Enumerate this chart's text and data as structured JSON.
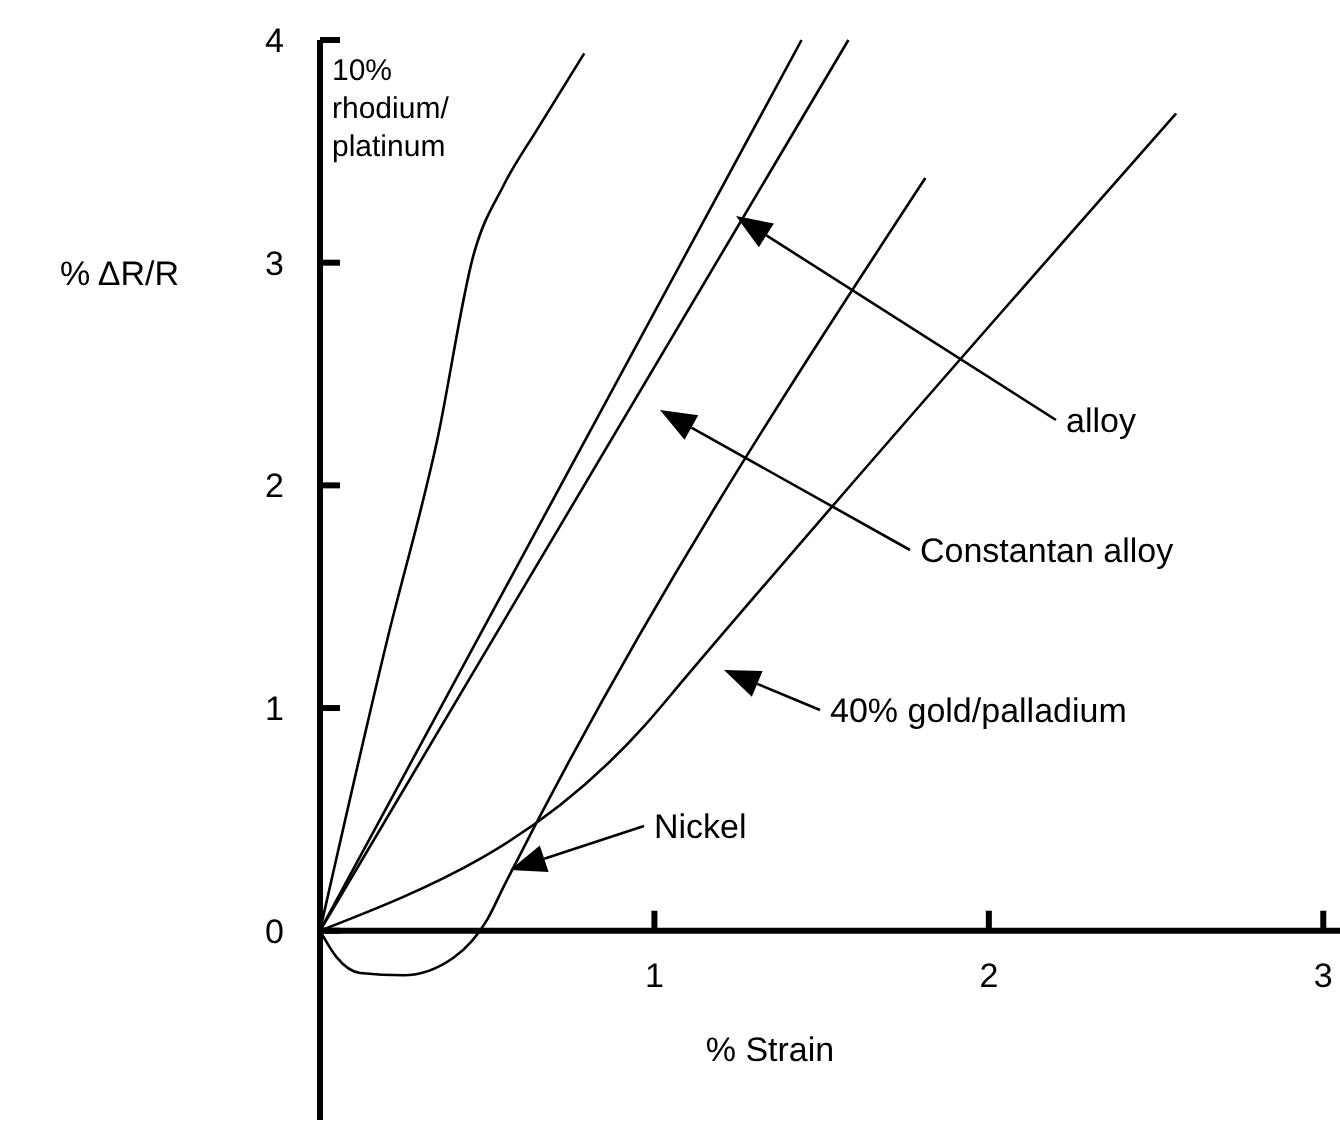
{
  "chart_data": {
    "type": "line",
    "xlabel": "% Strain",
    "ylabel": "% ΔR/R",
    "xlim": [
      0,
      3.05
    ],
    "ylim": [
      -0.85,
      4
    ],
    "xticks": [
      1,
      2,
      3
    ],
    "yticks": [
      0,
      1,
      2,
      3,
      4
    ],
    "grid": false,
    "line_style": "solid",
    "series": [
      {
        "color": "#000000",
        "x": [
          0,
          0.2,
          0.35,
          0.46,
          0.55,
          0.65,
          0.79
        ],
        "values": [
          0,
          1.3,
          2.2,
          3.04,
          3.35,
          3.6,
          3.94
        ]
      },
      {
        "color": "#000000",
        "x": [
          0,
          1.44
        ],
        "values": [
          0,
          4
        ]
      },
      {
        "color": "#000000",
        "x": [
          0,
          1.58
        ],
        "values": [
          0,
          4
        ]
      },
      {
        "color": "#000000",
        "x": [
          0,
          0.05,
          0.12,
          0.25,
          0.4,
          0.5,
          0.55,
          1.81
        ],
        "values": [
          0,
          -0.12,
          -0.19,
          -0.2,
          -0.12,
          0.05,
          0.2,
          3.38
        ]
      },
      {
        "color": "#000000",
        "x": [
          0,
          0.97,
          1.1,
          2.56
        ],
        "values": [
          0,
          0.92,
          1.15,
          3.67
        ]
      }
    ],
    "annotations": [
      "10% rhodium/ platinum",
      "alloy",
      "Constantan alloy",
      "40% gold/palladium",
      "Nickel"
    ]
  }
}
